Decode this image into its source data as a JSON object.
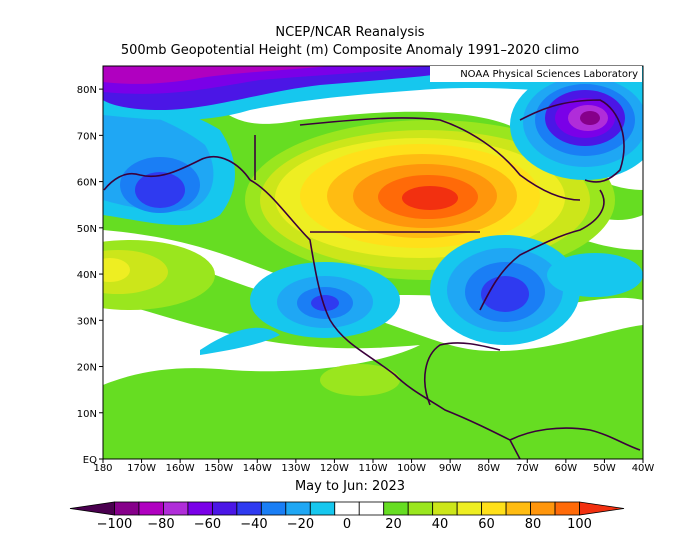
{
  "header": {
    "title": "NCEP/NCAR Reanalysis",
    "subtitle": "500mb Geopotential Height (m) Composite Anomaly 1991–2020 climo"
  },
  "attribution": "NOAA Physical Sciences Laboratory",
  "period_label": "May to Jun: 2023",
  "axes": {
    "lat_labels": [
      "80N",
      "70N",
      "60N",
      "50N",
      "40N",
      "30N",
      "20N",
      "10N",
      "EQ"
    ],
    "lon_labels": [
      "180",
      "170W",
      "160W",
      "150W",
      "140W",
      "130W",
      "120W",
      "110W",
      "100W",
      "90W",
      "80W",
      "70W",
      "60W",
      "50W",
      "40W"
    ]
  },
  "colorbar": {
    "tick_labels": [
      "−100",
      "−80",
      "−60",
      "−40",
      "−20",
      "0",
      "20",
      "40",
      "60",
      "80",
      "100"
    ],
    "colors": [
      "#4a004f",
      "#86008a",
      "#b000c0",
      "#b02dd9",
      "#7a00e8",
      "#4b16e6",
      "#2f3af0",
      "#1a7ef5",
      "#1fa7f4",
      "#16c7ee",
      "#ffffff",
      "#ffffff",
      "#66dd22",
      "#9ae61e",
      "#cce61a",
      "#eeee22",
      "#ffe01a",
      "#ffbc12",
      "#ff960c",
      "#ff6a08",
      "#f23010"
    ]
  },
  "map_data": {
    "type": "heatmap",
    "field": "500mb geopotential height composite anomaly",
    "units": "m",
    "extent": {
      "lon_min": -180,
      "lon_max": -40,
      "lat_min": 0,
      "lat_max": 85
    },
    "features": [
      {
        "name": "positive anomaly center",
        "lon": -100,
        "lat": 56,
        "value": 90
      },
      {
        "name": "negative anomaly center",
        "lon": -75,
        "lat": 35,
        "value": -45
      },
      {
        "name": "negative anomaly center",
        "lon": -122,
        "lat": 33,
        "value": -40
      },
      {
        "name": "negative anomaly center",
        "lon": -165,
        "lat": 60,
        "value": -55
      },
      {
        "name": "negative anomaly center",
        "lon": -55,
        "lat": 76,
        "value": -80
      },
      {
        "name": "positive anomaly center",
        "lon": -175,
        "lat": 41,
        "value": 35
      }
    ]
  }
}
